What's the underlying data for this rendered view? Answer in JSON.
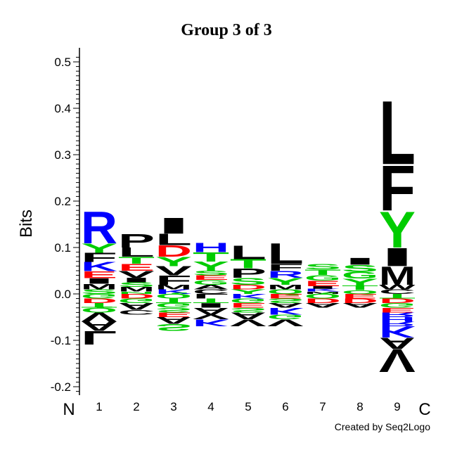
{
  "chart_data": {
    "type": "sequence-logo",
    "title": "Group 3 of 3",
    "ylabel": "Bits",
    "ylim": [
      -0.2,
      0.5
    ],
    "yticks": [
      -0.2,
      -0.1,
      0.0,
      0.1,
      0.2,
      0.3,
      0.4,
      0.5
    ],
    "ytick_labels": [
      "-0.2",
      "-0.1",
      "0.0",
      "0.1",
      "0.2",
      "0.3",
      "0.4",
      "0.5"
    ],
    "n_label": "N",
    "c_label": "C",
    "positions": [
      {
        "label": "1",
        "positive": [
          {
            "letter": "R",
            "bits": 0.07
          },
          {
            "letter": "Y",
            "bits": 0.02
          },
          {
            "letter": "F",
            "bits": 0.02
          },
          {
            "letter": "K",
            "bits": 0.02
          },
          {
            "letter": "E",
            "bits": 0.015
          },
          {
            "letter": "I",
            "bits": 0.012
          },
          {
            "letter": "M",
            "bits": 0.012
          },
          {
            "letter": "S",
            "bits": 0.01
          }
        ],
        "negative": [
          {
            "letter": "G",
            "bits": 0.01
          },
          {
            "letter": "D",
            "bits": 0.01
          },
          {
            "letter": "T",
            "bits": 0.01
          },
          {
            "letter": "Q",
            "bits": 0.01
          },
          {
            "letter": "V",
            "bits": 0.02
          },
          {
            "letter": "A",
            "bits": 0.02
          },
          {
            "letter": "L",
            "bits": 0.03
          }
        ]
      },
      {
        "label": "2",
        "positive": [
          {
            "letter": "P",
            "bits": 0.03
          },
          {
            "letter": "L",
            "bits": 0.02
          },
          {
            "letter": "T",
            "bits": 0.015
          },
          {
            "letter": "E",
            "bits": 0.015
          },
          {
            "letter": "V",
            "bits": 0.015
          },
          {
            "letter": "I",
            "bits": 0.01
          },
          {
            "letter": "S",
            "bits": 0.01
          },
          {
            "letter": "M",
            "bits": 0.01
          },
          {
            "letter": "N",
            "bits": 0.005
          }
        ],
        "negative": [
          {
            "letter": "D",
            "bits": 0.01
          },
          {
            "letter": "G",
            "bits": 0.01
          },
          {
            "letter": "A",
            "bits": 0.015
          },
          {
            "letter": "C",
            "bits": 0.01
          }
        ]
      },
      {
        "label": "3",
        "positive": [
          {
            "letter": "I",
            "bits": 0.035
          },
          {
            "letter": "L",
            "bits": 0.025
          },
          {
            "letter": "D",
            "bits": 0.025
          },
          {
            "letter": "Y",
            "bits": 0.02
          },
          {
            "letter": "V",
            "bits": 0.02
          },
          {
            "letter": "F",
            "bits": 0.02
          },
          {
            "letter": "M",
            "bits": 0.01
          },
          {
            "letter": "K",
            "bits": 0.01
          }
        ],
        "negative": [
          {
            "letter": "Q",
            "bits": 0.01
          },
          {
            "letter": "T",
            "bits": 0.01
          },
          {
            "letter": "G",
            "bits": 0.01
          },
          {
            "letter": "S",
            "bits": 0.01
          },
          {
            "letter": "E",
            "bits": 0.01
          },
          {
            "letter": "A",
            "bits": 0.015
          },
          {
            "letter": "S",
            "bits": 0.015
          }
        ]
      },
      {
        "label": "4",
        "positive": [
          {
            "letter": "H",
            "bits": 0.02
          },
          {
            "letter": "T",
            "bits": 0.02
          },
          {
            "letter": "Y",
            "bits": 0.02
          },
          {
            "letter": "S",
            "bits": 0.01
          },
          {
            "letter": "E",
            "bits": 0.01
          },
          {
            "letter": "G",
            "bits": 0.01
          },
          {
            "letter": "A",
            "bits": 0.01
          },
          {
            "letter": "C",
            "bits": 0.01
          }
        ],
        "negative": [
          {
            "letter": "L",
            "bits": 0.01
          },
          {
            "letter": "T",
            "bits": 0.01
          },
          {
            "letter": "I",
            "bits": 0.01
          },
          {
            "letter": "A",
            "bits": 0.015
          },
          {
            "letter": "V",
            "bits": 0.01
          },
          {
            "letter": "K",
            "bits": 0.015
          }
        ]
      },
      {
        "label": "5",
        "positive": [
          {
            "letter": "L",
            "bits": 0.03
          },
          {
            "letter": "T",
            "bits": 0.02
          },
          {
            "letter": "P",
            "bits": 0.02
          },
          {
            "letter": "S",
            "bits": 0.015
          },
          {
            "letter": "D",
            "bits": 0.01
          },
          {
            "letter": "Y",
            "bits": 0.01
          }
        ],
        "negative": [
          {
            "letter": "K",
            "bits": 0.01
          },
          {
            "letter": "G",
            "bits": 0.01
          },
          {
            "letter": "E",
            "bits": 0.01
          },
          {
            "letter": "S",
            "bits": 0.01
          },
          {
            "letter": "A",
            "bits": 0.015
          },
          {
            "letter": "V",
            "bits": 0.015
          }
        ]
      },
      {
        "label": "6",
        "positive": [
          {
            "letter": "L",
            "bits": 0.045
          },
          {
            "letter": "F",
            "bits": 0.015
          },
          {
            "letter": "R",
            "bits": 0.015
          },
          {
            "letter": "Y",
            "bits": 0.015
          },
          {
            "letter": "M",
            "bits": 0.01
          },
          {
            "letter": "Q",
            "bits": 0.01
          }
        ],
        "negative": [
          {
            "letter": "E",
            "bits": 0.01
          },
          {
            "letter": "S",
            "bits": 0.01
          },
          {
            "letter": "A",
            "bits": 0.01
          },
          {
            "letter": "K",
            "bits": 0.015
          },
          {
            "letter": "G",
            "bits": 0.01
          },
          {
            "letter": "V",
            "bits": 0.015
          }
        ]
      },
      {
        "label": "7",
        "positive": [
          {
            "letter": "S",
            "bits": 0.012
          },
          {
            "letter": "T",
            "bits": 0.012
          },
          {
            "letter": "G",
            "bits": 0.012
          },
          {
            "letter": "E",
            "bits": 0.012
          },
          {
            "letter": "I",
            "bits": 0.006
          },
          {
            "letter": "K",
            "bits": 0.006
          },
          {
            "letter": "M",
            "bits": 0.005
          }
        ],
        "negative": [
          {
            "letter": "Q",
            "bits": 0.01
          },
          {
            "letter": "D",
            "bits": 0.01
          },
          {
            "letter": "A",
            "bits": 0.01
          }
        ]
      },
      {
        "label": "8",
        "positive": [
          {
            "letter": "I",
            "bits": 0.015
          },
          {
            "letter": "S",
            "bits": 0.015
          },
          {
            "letter": "G",
            "bits": 0.015
          },
          {
            "letter": "Y",
            "bits": 0.015
          },
          {
            "letter": "T",
            "bits": 0.01
          },
          {
            "letter": "Q",
            "bits": 0.008
          }
        ],
        "negative": [
          {
            "letter": "E",
            "bits": 0.01
          },
          {
            "letter": "D",
            "bits": 0.01
          },
          {
            "letter": "A",
            "bits": 0.01
          }
        ]
      },
      {
        "label": "9",
        "positive": [
          {
            "letter": "L",
            "bits": 0.14
          },
          {
            "letter": "F",
            "bits": 0.1
          },
          {
            "letter": "Y",
            "bits": 0.08
          },
          {
            "letter": "I",
            "bits": 0.04
          },
          {
            "letter": "M",
            "bits": 0.04
          },
          {
            "letter": "W",
            "bits": 0.01
          },
          {
            "letter": "C",
            "bits": 0.01
          }
        ],
        "negative": [
          {
            "letter": "T",
            "bits": 0.01
          },
          {
            "letter": "D",
            "bits": 0.01
          },
          {
            "letter": "G",
            "bits": 0.01
          },
          {
            "letter": "E",
            "bits": 0.01
          },
          {
            "letter": "R",
            "bits": 0.01
          },
          {
            "letter": "H",
            "bits": 0.01
          },
          {
            "letter": "R",
            "bits": 0.01
          },
          {
            "letter": "K",
            "bits": 0.025
          },
          {
            "letter": "A",
            "bits": 0.025
          },
          {
            "letter": "V",
            "bits": 0.05
          }
        ]
      }
    ],
    "colors": {
      "hydrophobic": "#000000",
      "polar": "#00cc00",
      "basic": "#0000ff",
      "acidic": "#ff0000"
    },
    "credit": "Created by Seq2Logo"
  }
}
